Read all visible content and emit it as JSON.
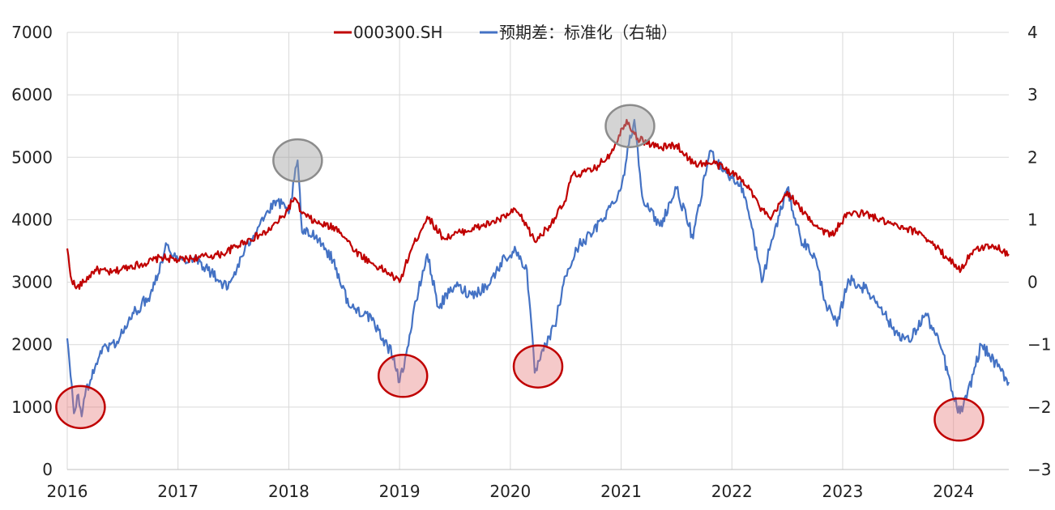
{
  "chart_data": {
    "type": "line",
    "title": "",
    "xlabel": "",
    "ylabel": "",
    "x_ticks": [
      "2016",
      "2017",
      "2018",
      "2019",
      "2020",
      "2021",
      "2022",
      "2023",
      "2024"
    ],
    "y_left_ticks": [
      "7000",
      "6000",
      "5000",
      "4000",
      "3000",
      "2000",
      "1000",
      "0"
    ],
    "y_right_ticks": [
      "4",
      "3",
      "2",
      "1",
      "0",
      "−1",
      "−2",
      "−3"
    ],
    "y_left_range": [
      0,
      7000
    ],
    "y_right_range": [
      -3,
      4
    ],
    "x_range": [
      2016.0,
      2024.5
    ],
    "grid": true,
    "legend_position": "top-center",
    "series": [
      {
        "name": "000300.SH",
        "axis": "left",
        "color": "#c00000",
        "points": [
          [
            2016.0,
            3540
          ],
          [
            2016.03,
            3100
          ],
          [
            2016.08,
            2900
          ],
          [
            2016.15,
            3000
          ],
          [
            2016.25,
            3200
          ],
          [
            2016.4,
            3150
          ],
          [
            2016.55,
            3250
          ],
          [
            2016.7,
            3300
          ],
          [
            2016.85,
            3400
          ],
          [
            2017.0,
            3350
          ],
          [
            2017.2,
            3400
          ],
          [
            2017.4,
            3450
          ],
          [
            2017.6,
            3650
          ],
          [
            2017.8,
            3800
          ],
          [
            2017.95,
            4050
          ],
          [
            2018.05,
            4350
          ],
          [
            2018.12,
            4100
          ],
          [
            2018.25,
            3950
          ],
          [
            2018.45,
            3850
          ],
          [
            2018.6,
            3500
          ],
          [
            2018.75,
            3300
          ],
          [
            2018.9,
            3150
          ],
          [
            2019.0,
            3000
          ],
          [
            2019.1,
            3500
          ],
          [
            2019.25,
            4050
          ],
          [
            2019.4,
            3700
          ],
          [
            2019.55,
            3800
          ],
          [
            2019.75,
            3900
          ],
          [
            2019.9,
            4000
          ],
          [
            2020.05,
            4150
          ],
          [
            2020.15,
            3900
          ],
          [
            2020.22,
            3650
          ],
          [
            2020.35,
            3900
          ],
          [
            2020.5,
            4300
          ],
          [
            2020.55,
            4700
          ],
          [
            2020.75,
            4800
          ],
          [
            2020.9,
            5050
          ],
          [
            2021.05,
            5600
          ],
          [
            2021.15,
            5300
          ],
          [
            2021.35,
            5150
          ],
          [
            2021.5,
            5200
          ],
          [
            2021.65,
            4900
          ],
          [
            2021.85,
            4900
          ],
          [
            2022.0,
            4750
          ],
          [
            2022.15,
            4550
          ],
          [
            2022.25,
            4200
          ],
          [
            2022.35,
            4000
          ],
          [
            2022.5,
            4450
          ],
          [
            2022.65,
            4100
          ],
          [
            2022.8,
            3850
          ],
          [
            2022.9,
            3750
          ],
          [
            2023.05,
            4100
          ],
          [
            2023.2,
            4100
          ],
          [
            2023.4,
            3950
          ],
          [
            2023.55,
            3850
          ],
          [
            2023.7,
            3800
          ],
          [
            2023.85,
            3550
          ],
          [
            2024.0,
            3300
          ],
          [
            2024.07,
            3200
          ],
          [
            2024.15,
            3450
          ],
          [
            2024.25,
            3550
          ],
          [
            2024.35,
            3600
          ],
          [
            2024.45,
            3500
          ],
          [
            2024.5,
            3450
          ]
        ]
      },
      {
        "name": "预期差：标准化（右轴）",
        "axis": "right",
        "color": "#4472c4",
        "points": [
          [
            2016.0,
            -0.9
          ],
          [
            2016.03,
            -1.5
          ],
          [
            2016.06,
            -2.1
          ],
          [
            2016.1,
            -1.8
          ],
          [
            2016.13,
            -2.15
          ],
          [
            2016.17,
            -1.7
          ],
          [
            2016.22,
            -1.55
          ],
          [
            2016.3,
            -1.1
          ],
          [
            2016.45,
            -0.95
          ],
          [
            2016.6,
            -0.5
          ],
          [
            2016.75,
            -0.2
          ],
          [
            2016.9,
            0.6
          ],
          [
            2017.0,
            0.35
          ],
          [
            2017.15,
            0.4
          ],
          [
            2017.3,
            0.15
          ],
          [
            2017.45,
            -0.1
          ],
          [
            2017.6,
            0.5
          ],
          [
            2017.75,
            1.0
          ],
          [
            2017.9,
            1.3
          ],
          [
            2018.0,
            1.1
          ],
          [
            2018.08,
            1.95
          ],
          [
            2018.12,
            0.8
          ],
          [
            2018.25,
            0.75
          ],
          [
            2018.4,
            0.35
          ],
          [
            2018.55,
            -0.4
          ],
          [
            2018.7,
            -0.5
          ],
          [
            2018.85,
            -0.9
          ],
          [
            2018.95,
            -1.2
          ],
          [
            2019.0,
            -1.6
          ],
          [
            2019.06,
            -1.15
          ],
          [
            2019.15,
            -0.3
          ],
          [
            2019.25,
            0.45
          ],
          [
            2019.35,
            -0.4
          ],
          [
            2019.5,
            -0.05
          ],
          [
            2019.65,
            -0.2
          ],
          [
            2019.8,
            -0.05
          ],
          [
            2019.95,
            0.4
          ],
          [
            2020.05,
            0.5
          ],
          [
            2020.15,
            0.2
          ],
          [
            2020.22,
            -1.45
          ],
          [
            2020.3,
            -1.1
          ],
          [
            2020.4,
            -0.7
          ],
          [
            2020.5,
            0.1
          ],
          [
            2020.62,
            0.6
          ],
          [
            2020.75,
            0.8
          ],
          [
            2020.9,
            1.2
          ],
          [
            2021.0,
            1.5
          ],
          [
            2021.07,
            2.2
          ],
          [
            2021.12,
            2.6
          ],
          [
            2021.2,
            1.3
          ],
          [
            2021.35,
            0.9
          ],
          [
            2021.5,
            1.5
          ],
          [
            2021.65,
            0.7
          ],
          [
            2021.8,
            2.1
          ],
          [
            2021.95,
            1.75
          ],
          [
            2022.1,
            1.5
          ],
          [
            2022.2,
            0.7
          ],
          [
            2022.27,
            0.0
          ],
          [
            2022.35,
            0.6
          ],
          [
            2022.5,
            1.5
          ],
          [
            2022.62,
            0.7
          ],
          [
            2022.75,
            0.4
          ],
          [
            2022.85,
            -0.35
          ],
          [
            2022.95,
            -0.7
          ],
          [
            2023.05,
            0.05
          ],
          [
            2023.2,
            -0.1
          ],
          [
            2023.35,
            -0.4
          ],
          [
            2023.45,
            -0.75
          ],
          [
            2023.6,
            -0.95
          ],
          [
            2023.75,
            -0.5
          ],
          [
            2023.9,
            -1.1
          ],
          [
            2024.0,
            -1.85
          ],
          [
            2024.06,
            -2.1
          ],
          [
            2024.12,
            -1.85
          ],
          [
            2024.25,
            -1.0
          ],
          [
            2024.4,
            -1.35
          ],
          [
            2024.5,
            -1.6
          ]
        ]
      }
    ],
    "annotations": [
      {
        "type": "circle",
        "color": "red",
        "x": 2016.12,
        "y_right": -2.0
      },
      {
        "type": "circle",
        "color": "gray",
        "x": 2018.08,
        "y_right": 1.95
      },
      {
        "type": "circle",
        "color": "red",
        "x": 2019.03,
        "y_right": -1.5
      },
      {
        "type": "circle",
        "color": "red",
        "x": 2020.25,
        "y_right": -1.35
      },
      {
        "type": "circle",
        "color": "gray",
        "x": 2021.08,
        "y_right": 2.5
      },
      {
        "type": "circle",
        "color": "red",
        "x": 2024.05,
        "y_right": -2.2
      }
    ]
  }
}
